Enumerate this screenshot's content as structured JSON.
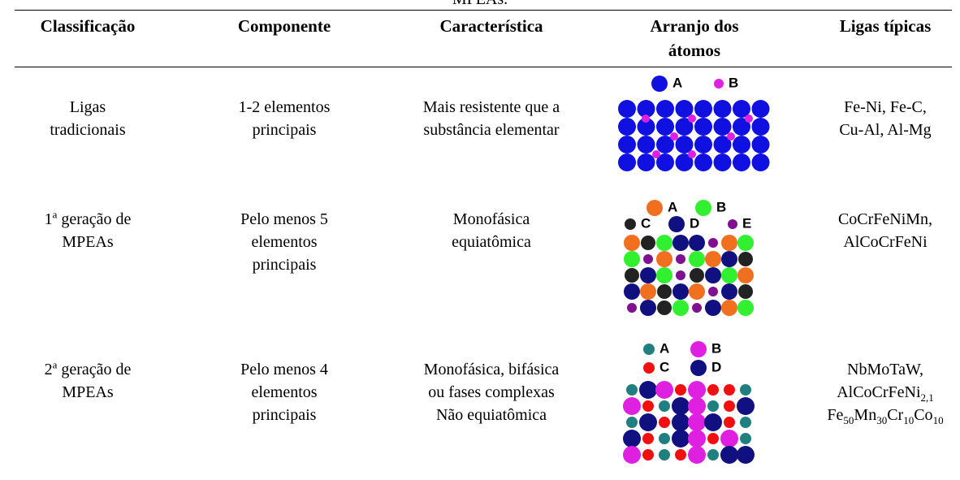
{
  "caption_fragment": "MPEAs.",
  "table": {
    "headers": [
      [
        "Classificação"
      ],
      [
        "Componente"
      ],
      [
        "Característica"
      ],
      [
        "Arranjo dos",
        "átomos"
      ],
      [
        "Ligas típicas"
      ]
    ],
    "rows": [
      [
        [
          "Ligas",
          "tradicionais"
        ],
        [
          "1-2 elementos",
          "principais"
        ],
        [
          "Mais resistente que a",
          "substância elementar"
        ],
        {
          "legend": [
            "A",
            "B"
          ]
        },
        [
          "Fe-Ni, Fe-C,",
          "Cu-Al, Al-Mg"
        ]
      ],
      [
        [
          [
            {
              "text": "1"
            },
            {
              "text": "a",
              "style": "sup"
            },
            {
              "text": " geração de"
            }
          ],
          "MPEAs"
        ],
        [
          "Pelo menos 5",
          "elementos",
          "principais"
        ],
        [
          "Monofásica",
          "equiatômica"
        ],
        {
          "legend": [
            "A",
            "B",
            "C",
            "D",
            "E"
          ]
        },
        [
          "CoCrFeNiMn,",
          "AlCoCrFeNi"
        ]
      ],
      [
        [
          [
            {
              "text": "2"
            },
            {
              "text": "a",
              "style": "sup"
            },
            {
              "text": " geração de"
            }
          ],
          "MPEAs"
        ],
        [
          "Pelo menos 4",
          "elementos",
          "principais"
        ],
        [
          "Monofásica, bifásica",
          "ou fases complexas",
          "Não equiatômica"
        ],
        {
          "legend": [
            "A",
            "B",
            "C",
            "D"
          ]
        },
        [
          "NbMoTaW,",
          [
            {
              "text": "AlCoCrFeNi"
            },
            {
              "text": "2,1",
              "style": "sub"
            }
          ],
          [
            {
              "text": "Fe"
            },
            {
              "text": "50",
              "style": "sub"
            },
            {
              "text": "Mn"
            },
            {
              "text": "30",
              "style": "sub"
            },
            {
              "text": "Cr"
            },
            {
              "text": "10",
              "style": "sub"
            },
            {
              "text": "Co"
            },
            {
              "text": "10",
              "style": "sub"
            }
          ]
        ]
      ]
    ]
  }
}
